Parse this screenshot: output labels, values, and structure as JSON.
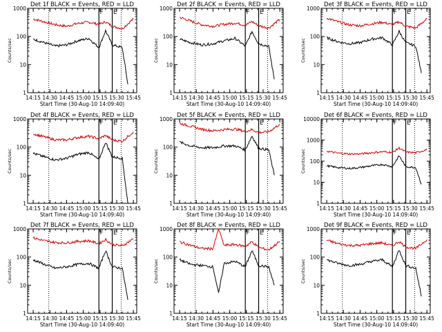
{
  "chart_data": {
    "type": "line",
    "layout": "3x3 grid of detector light curves",
    "common": {
      "xlabel": "Start Time (30-Aug-10 14:09:40)",
      "ylabel": "Counts/sec",
      "x_ticks": [
        "14:15",
        "14:30",
        "14:45",
        "15:00",
        "15:15",
        "15:30",
        "15:45"
      ],
      "y_scale": "log",
      "y_ticks": [
        "1",
        "10",
        "100",
        "1000"
      ],
      "series_colors": {
        "events": "#000000",
        "lld": "#d40000"
      },
      "markers": [
        {
          "label": "",
          "time": "14:29",
          "style": "dotted"
        },
        {
          "label": "F",
          "time": "15:14",
          "style": "solid"
        },
        {
          "label": "E",
          "time": "15:26",
          "style": "solid"
        },
        {
          "label": "",
          "time": "15:34",
          "style": "dotted"
        }
      ]
    },
    "panels": [
      {
        "title": "Det 1f  BLACK = Events, RED = LLD",
        "ylim": [
          1,
          1000
        ],
        "y_ticks": [
          "1",
          "10",
          "100",
          "1000"
        ],
        "series": [
          {
            "name": "LLD",
            "color": "#d40000",
            "x": [
              "14:15",
              "14:25",
              "14:35",
              "14:45",
              "14:55",
              "15:05",
              "15:14",
              "15:20",
              "15:26",
              "15:35",
              "15:45"
            ],
            "values": [
              420,
              330,
              260,
              230,
              290,
              320,
              270,
              330,
              230,
              190,
              420
            ]
          },
          {
            "name": "Events",
            "color": "#000000",
            "x": [
              "14:15",
              "14:25",
              "14:35",
              "14:45",
              "14:55",
              "15:05",
              "15:14",
              "15:20",
              "15:26",
              "15:35",
              "15:40"
            ],
            "values": [
              80,
              60,
              45,
              50,
              70,
              85,
              40,
              160,
              50,
              40,
              2
            ]
          }
        ]
      },
      {
        "title": "Det 2f  BLACK = Events, RED = LLD",
        "ylim": [
          1,
          1000
        ],
        "y_ticks": [
          "1",
          "10",
          "100",
          "1000"
        ],
        "series": [
          {
            "name": "LLD",
            "color": "#d40000",
            "x": [
              "14:15",
              "14:25",
              "14:35",
              "14:45",
              "14:55",
              "15:05",
              "15:14",
              "15:20",
              "15:26",
              "15:35",
              "15:45"
            ],
            "values": [
              480,
              350,
              260,
              230,
              270,
              300,
              250,
              340,
              240,
              200,
              400
            ]
          },
          {
            "name": "Events",
            "color": "#000000",
            "x": [
              "14:15",
              "14:25",
              "14:35",
              "14:45",
              "14:55",
              "15:05",
              "15:14",
              "15:20",
              "15:26",
              "15:35",
              "15:40"
            ],
            "values": [
              80,
              60,
              50,
              55,
              70,
              85,
              45,
              150,
              55,
              45,
              3
            ]
          }
        ]
      },
      {
        "title": "Det 3f  BLACK = Events, RED = LLD",
        "ylim": [
          1,
          1000
        ],
        "y_ticks": [
          "1",
          "10",
          "100",
          "1000"
        ],
        "series": [
          {
            "name": "LLD",
            "color": "#d40000",
            "x": [
              "14:15",
              "14:25",
              "14:35",
              "14:45",
              "14:55",
              "15:05",
              "15:14",
              "15:20",
              "15:26",
              "15:35",
              "15:45"
            ],
            "values": [
              450,
              330,
              260,
              240,
              280,
              320,
              260,
              330,
              230,
              200,
              420
            ]
          },
          {
            "name": "Events",
            "color": "#000000",
            "x": [
              "14:15",
              "14:25",
              "14:35",
              "14:45",
              "14:55",
              "15:05",
              "15:14",
              "15:20",
              "15:26",
              "15:35",
              "15:40"
            ],
            "values": [
              90,
              65,
              55,
              60,
              80,
              90,
              50,
              150,
              60,
              45,
              5
            ]
          }
        ]
      },
      {
        "title": "Det 4f  BLACK = Events, RED = LLD",
        "ylim": [
          1,
          1000
        ],
        "y_ticks": [
          "1",
          "10",
          "100",
          "1000"
        ],
        "series": [
          {
            "name": "LLD",
            "color": "#d40000",
            "x": [
              "14:15",
              "14:25",
              "14:35",
              "14:45",
              "14:55",
              "15:05",
              "15:14",
              "15:20",
              "15:26",
              "15:35",
              "15:45"
            ],
            "values": [
              300,
              230,
              180,
              180,
              220,
              240,
              200,
              260,
              180,
              160,
              350
            ]
          },
          {
            "name": "Events",
            "color": "#000000",
            "x": [
              "14:15",
              "14:25",
              "14:35",
              "14:45",
              "14:55",
              "15:05",
              "15:14",
              "15:20",
              "15:26",
              "15:35",
              "15:40"
            ],
            "values": [
              60,
              45,
              35,
              40,
              55,
              65,
              35,
              150,
              45,
              40,
              1
            ]
          }
        ]
      },
      {
        "title": "Det 5f  BLACK = Events, RED = LLD",
        "ylim": [
          1,
          1000
        ],
        "y_ticks": [
          "1",
          "10",
          "100",
          "1000"
        ],
        "series": [
          {
            "name": "LLD",
            "color": "#d40000",
            "x": [
              "14:15",
              "14:25",
              "14:35",
              "14:45",
              "14:55",
              "15:05",
              "15:14",
              "15:20",
              "15:26",
              "15:35",
              "15:45"
            ],
            "values": [
              700,
              550,
              430,
              380,
              420,
              440,
              360,
              420,
              330,
              350,
              650
            ]
          },
          {
            "name": "Events",
            "color": "#000000",
            "x": [
              "14:15",
              "14:25",
              "14:35",
              "14:45",
              "14:55",
              "15:05",
              "15:14",
              "15:20",
              "15:26",
              "15:35",
              "15:40"
            ],
            "values": [
              150,
              110,
              95,
              95,
              110,
              110,
              80,
              250,
              90,
              80,
              10
            ]
          }
        ]
      },
      {
        "title": "Det 6f  BLACK = Events, RED = LLD",
        "ylim": [
          1,
          10000
        ],
        "y_ticks": [
          "1",
          "10",
          "100",
          "1000",
          "10000"
        ],
        "series": [
          {
            "name": "LLD",
            "color": "#d40000",
            "x": [
              "14:15",
              "14:25",
              "14:35",
              "14:45",
              "14:55",
              "15:05",
              "15:14",
              "15:20",
              "15:26",
              "15:35",
              "15:45"
            ],
            "values": [
              300,
              240,
              220,
              220,
              250,
              280,
              260,
              420,
              270,
              250,
              350
            ]
          },
          {
            "name": "Events",
            "color": "#000000",
            "x": [
              "14:15",
              "14:25",
              "14:35",
              "14:45",
              "14:55",
              "15:05",
              "15:14",
              "15:20",
              "15:26",
              "15:35",
              "15:40"
            ],
            "values": [
              60,
              50,
              45,
              50,
              60,
              70,
              55,
              180,
              55,
              50,
              8
            ]
          }
        ]
      },
      {
        "title": "Det 7f  BLACK = Events, RED = LLD",
        "ylim": [
          1,
          1000
        ],
        "y_ticks": [
          "1",
          "10",
          "100",
          "1000"
        ],
        "series": [
          {
            "name": "LLD",
            "color": "#d40000",
            "x": [
              "14:15",
              "14:25",
              "14:35",
              "14:45",
              "14:55",
              "15:05",
              "15:14",
              "15:20",
              "15:26",
              "15:35",
              "15:45"
            ],
            "values": [
              480,
              380,
              330,
              320,
              360,
              380,
              300,
              420,
              280,
              250,
              450
            ]
          },
          {
            "name": "Events",
            "color": "#000000",
            "x": [
              "14:15",
              "14:25",
              "14:35",
              "14:45",
              "14:55",
              "15:05",
              "15:14",
              "15:20",
              "15:26",
              "15:35",
              "15:40"
            ],
            "values": [
              80,
              55,
              40,
              45,
              55,
              60,
              40,
              170,
              45,
              40,
              3
            ]
          }
        ]
      },
      {
        "title": "Det 8f  BLACK = Events, RED = LLD",
        "ylim": [
          1,
          1000
        ],
        "y_ticks": [
          "1",
          "10",
          "100",
          "1000"
        ],
        "series": [
          {
            "name": "LLD",
            "color": "#d40000",
            "x": [
              "14:15",
              "14:25",
              "14:35",
              "14:45",
              "14:50",
              "14:55",
              "15:05",
              "15:14",
              "15:20",
              "15:26",
              "15:35",
              "15:45"
            ],
            "values": [
              350,
              260,
              200,
              200,
              1000,
              260,
              280,
              240,
              350,
              220,
              180,
              360
            ]
          },
          {
            "name": "Events",
            "color": "#000000",
            "x": [
              "14:15",
              "14:25",
              "14:35",
              "14:45",
              "14:50",
              "14:55",
              "15:05",
              "15:14",
              "15:20",
              "15:26",
              "15:35",
              "15:40"
            ],
            "values": [
              80,
              55,
              50,
              45,
              5,
              60,
              70,
              45,
              170,
              50,
              45,
              10
            ]
          }
        ]
      },
      {
        "title": "Det 9f  BLACK = Events, RED = LLD",
        "ylim": [
          1,
          1000
        ],
        "y_ticks": [
          "1",
          "10",
          "100",
          "1000"
        ],
        "series": [
          {
            "name": "LLD",
            "color": "#d40000",
            "x": [
              "14:15",
              "14:25",
              "14:35",
              "14:45",
              "14:55",
              "15:05",
              "15:14",
              "15:20",
              "15:26",
              "15:35",
              "15:45"
            ],
            "values": [
              400,
              300,
              260,
              260,
              300,
              320,
              250,
              360,
              230,
              200,
              420
            ]
          },
          {
            "name": "Events",
            "color": "#000000",
            "x": [
              "14:15",
              "14:25",
              "14:35",
              "14:45",
              "14:55",
              "15:05",
              "15:14",
              "15:20",
              "15:26",
              "15:35",
              "15:40"
            ],
            "values": [
              80,
              60,
              50,
              55,
              70,
              80,
              45,
              180,
              50,
              40,
              4
            ]
          }
        ]
      }
    ]
  }
}
